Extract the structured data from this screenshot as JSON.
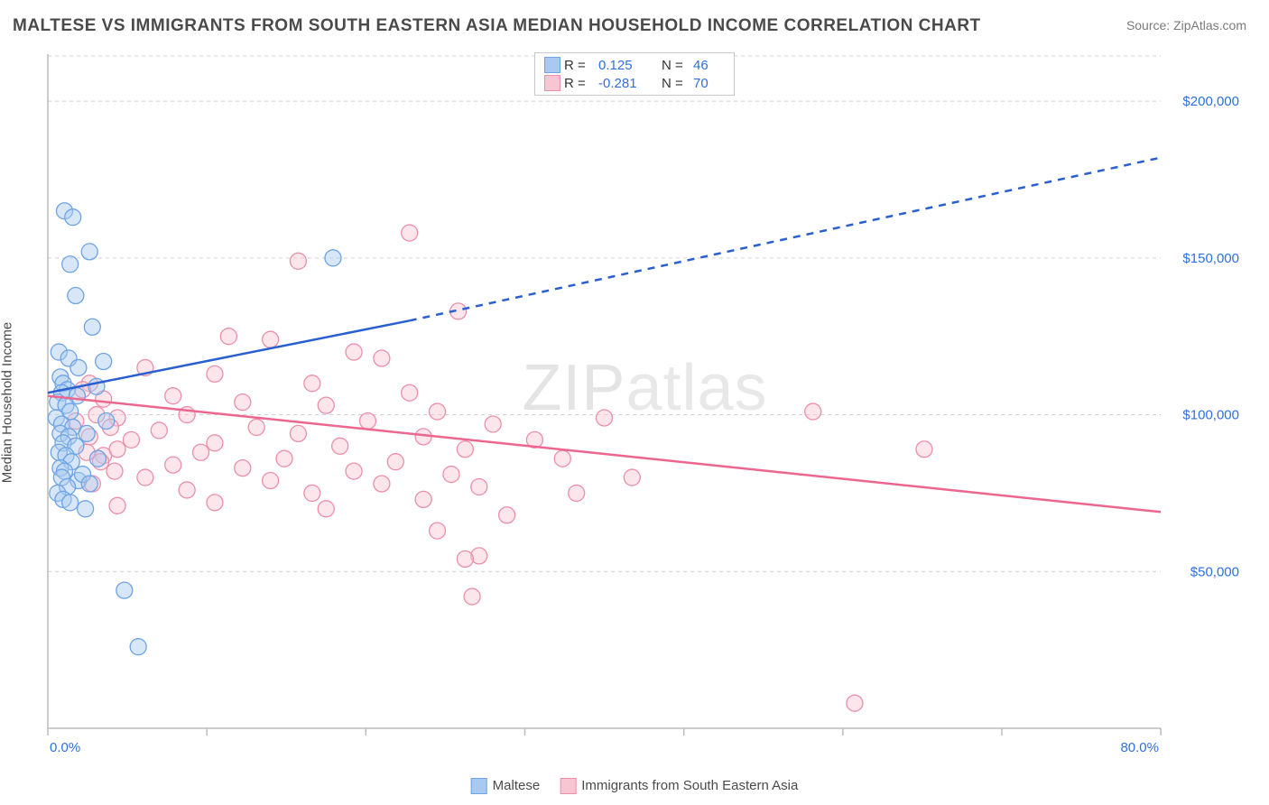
{
  "title": "MALTESE VS IMMIGRANTS FROM SOUTH EASTERN ASIA MEDIAN HOUSEHOLD INCOME CORRELATION CHART",
  "source_label": "Source: ZipAtlas.com",
  "watermark_main": "ZIP",
  "watermark_sub": "atlas",
  "y_axis_label": "Median Household Income",
  "colors": {
    "blue_fill": "#a9c9f0",
    "blue_stroke": "#6ea3e6",
    "blue_line": "#2a5fd0",
    "pink_fill": "#f8c5d3",
    "pink_stroke": "#eb8fab",
    "pink_line": "#ec6690",
    "tick_text": "#2f6fe0",
    "grid": "#d0d0d0",
    "axis": "#bcbcbc",
    "title_color": "#4a4a4a",
    "bg": "#ffffff"
  },
  "chart": {
    "type": "scatter-with-regression",
    "xlim": [
      0,
      80
    ],
    "ylim": [
      0,
      215000
    ],
    "y_ticks": [
      50000,
      100000,
      150000,
      200000
    ],
    "y_tick_labels": [
      "$50,000",
      "$100,000",
      "$150,000",
      "$200,000"
    ],
    "x_ticks": [
      0,
      80
    ],
    "x_tick_labels": [
      "0.0%",
      "80.0%"
    ],
    "x_minor_tick_step": 11.43,
    "marker_radius": 9,
    "marker_fill_opacity": 0.45,
    "line_width": 2.5,
    "grid_dash": "4 4"
  },
  "series": [
    {
      "name": "Maltese",
      "color_fill": "#a9c9f0",
      "color_stroke": "#6ea3e6",
      "line_color": "#2a5fd0",
      "R": "0.125",
      "N": "46",
      "regression": {
        "x1": 0,
        "y1": 107000,
        "x2_solid": 26,
        "y2_solid": 130000,
        "x2_dash": 80,
        "y2_dash": 182000
      },
      "points": [
        [
          1.2,
          165000
        ],
        [
          1.8,
          163000
        ],
        [
          3.0,
          152000
        ],
        [
          1.6,
          148000
        ],
        [
          2.0,
          138000
        ],
        [
          0.8,
          120000
        ],
        [
          1.5,
          118000
        ],
        [
          2.2,
          115000
        ],
        [
          0.9,
          112000
        ],
        [
          1.1,
          110000
        ],
        [
          1.4,
          108000
        ],
        [
          1.0,
          107000
        ],
        [
          2.1,
          106000
        ],
        [
          0.7,
          104000
        ],
        [
          1.3,
          103000
        ],
        [
          1.6,
          101000
        ],
        [
          0.6,
          99000
        ],
        [
          1.0,
          97000
        ],
        [
          1.8,
          96000
        ],
        [
          0.9,
          94000
        ],
        [
          1.5,
          93000
        ],
        [
          1.1,
          91000
        ],
        [
          2.0,
          90000
        ],
        [
          0.8,
          88000
        ],
        [
          1.3,
          87000
        ],
        [
          1.7,
          85000
        ],
        [
          0.9,
          83000
        ],
        [
          1.2,
          82000
        ],
        [
          1.0,
          80000
        ],
        [
          2.2,
          79000
        ],
        [
          1.4,
          77000
        ],
        [
          0.7,
          75000
        ],
        [
          1.1,
          73000
        ],
        [
          1.6,
          72000
        ],
        [
          5.5,
          44000
        ],
        [
          6.5,
          26000
        ],
        [
          20.5,
          150000
        ],
        [
          3.2,
          128000
        ],
        [
          4.0,
          117000
        ],
        [
          3.5,
          109000
        ],
        [
          4.2,
          98000
        ],
        [
          2.8,
          94000
        ],
        [
          3.6,
          86000
        ],
        [
          2.5,
          81000
        ],
        [
          3.0,
          78000
        ],
        [
          2.7,
          70000
        ]
      ]
    },
    {
      "name": "Immigrants from South Eastern Asia",
      "color_fill": "#f8c5d3",
      "color_stroke": "#eb8fab",
      "line_color": "#ec6690",
      "R": "-0.281",
      "N": "70",
      "regression": {
        "x1": 0,
        "y1": 106000,
        "x2_solid": 80,
        "y2_solid": 69000
      },
      "points": [
        [
          26.0,
          158000
        ],
        [
          18.0,
          149000
        ],
        [
          29.5,
          133000
        ],
        [
          13.0,
          125000
        ],
        [
          16.0,
          124000
        ],
        [
          22.0,
          120000
        ],
        [
          24.0,
          118000
        ],
        [
          7.0,
          115000
        ],
        [
          12.0,
          113000
        ],
        [
          19.0,
          110000
        ],
        [
          26.0,
          107000
        ],
        [
          9.0,
          106000
        ],
        [
          14.0,
          104000
        ],
        [
          20.0,
          103000
        ],
        [
          28.0,
          101000
        ],
        [
          10.0,
          100000
        ],
        [
          5.0,
          99000
        ],
        [
          23.0,
          98000
        ],
        [
          32.0,
          97000
        ],
        [
          15.0,
          96000
        ],
        [
          8.0,
          95000
        ],
        [
          18.0,
          94000
        ],
        [
          27.0,
          93000
        ],
        [
          6.0,
          92000
        ],
        [
          12.0,
          91000
        ],
        [
          21.0,
          90000
        ],
        [
          30.0,
          89000
        ],
        [
          11.0,
          88000
        ],
        [
          4.0,
          87000
        ],
        [
          17.0,
          86000
        ],
        [
          25.0,
          85000
        ],
        [
          9.0,
          84000
        ],
        [
          14.0,
          83000
        ],
        [
          22.0,
          82000
        ],
        [
          29.0,
          81000
        ],
        [
          7.0,
          80000
        ],
        [
          16.0,
          79000
        ],
        [
          24.0,
          78000
        ],
        [
          31.0,
          77000
        ],
        [
          10.0,
          76000
        ],
        [
          19.0,
          75000
        ],
        [
          27.0,
          73000
        ],
        [
          12.0,
          72000
        ],
        [
          5.0,
          71000
        ],
        [
          20.0,
          70000
        ],
        [
          33.0,
          68000
        ],
        [
          28.0,
          63000
        ],
        [
          31.0,
          55000
        ],
        [
          30.0,
          54000
        ],
        [
          30.5,
          42000
        ],
        [
          40.0,
          99000
        ],
        [
          35.0,
          92000
        ],
        [
          37.0,
          86000
        ],
        [
          42.0,
          80000
        ],
        [
          38.0,
          75000
        ],
        [
          55.0,
          101000
        ],
        [
          63.0,
          89000
        ],
        [
          3.0,
          110000
        ],
        [
          4.0,
          105000
        ],
        [
          3.5,
          100000
        ],
        [
          4.5,
          96000
        ],
        [
          3.0,
          93000
        ],
        [
          5.0,
          89000
        ],
        [
          3.8,
          85000
        ],
        [
          4.8,
          82000
        ],
        [
          3.2,
          78000
        ],
        [
          58.0,
          8000
        ],
        [
          2.5,
          108000
        ],
        [
          2.0,
          98000
        ],
        [
          2.8,
          88000
        ]
      ]
    }
  ],
  "legend_top": {
    "row1": {
      "R_label": "R =",
      "R_val": "0.125",
      "N_label": "N =",
      "N_val": "46"
    },
    "row2": {
      "R_label": "R =",
      "R_val": "-0.281",
      "N_label": "N =",
      "N_val": "70"
    }
  },
  "legend_bottom": {
    "item1": "Maltese",
    "item2": "Immigrants from South Eastern Asia"
  }
}
